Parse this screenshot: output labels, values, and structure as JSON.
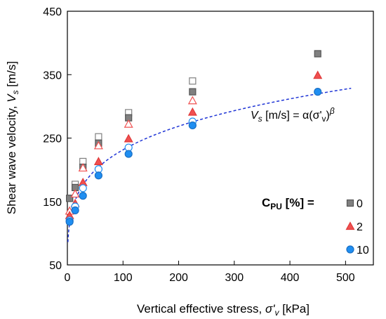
{
  "chart_data": {
    "type": "scatter",
    "xlabel": {
      "main": "Vertical effective stress, ",
      "sym": "σ'",
      "sub": "v",
      "tail": " [kPa]"
    },
    "ylabel": {
      "main": "Shear wave velocity, ",
      "sym": "V",
      "sub": "s",
      "tail": " [m/s]"
    },
    "xlim": [
      0,
      550
    ],
    "ylim": [
      50,
      450
    ],
    "xticks": [
      0,
      100,
      200,
      300,
      400,
      500
    ],
    "yticks": [
      50,
      150,
      250,
      350,
      450
    ],
    "grid": false,
    "legend": {
      "title_main": "C",
      "title_sub": "PU",
      "title_tail": " [%] =",
      "placement": "right",
      "entries": [
        "0",
        "2",
        "10"
      ]
    },
    "annotation": {
      "v": "V",
      "s": "s",
      "rest": " [m/s] = α(σ'",
      "v2": "v",
      "close": ")",
      "beta": "β"
    },
    "fit": {
      "type": "power",
      "alpha": 86,
      "beta": 0.215,
      "x_range": [
        1,
        510
      ],
      "color": "#1f35d6",
      "style": "dashed"
    },
    "series": [
      {
        "name": "0",
        "marker": "square",
        "color": "#808080",
        "filled": [
          [
            4,
            155
          ],
          [
            14,
            172
          ],
          [
            28,
            204
          ],
          [
            56,
            242
          ],
          [
            110,
            282
          ],
          [
            225,
            323
          ],
          [
            450,
            383
          ]
        ],
        "open": [
          [
            4,
            155
          ],
          [
            14,
            177
          ],
          [
            28,
            213
          ],
          [
            56,
            252
          ],
          [
            110,
            290
          ],
          [
            225,
            340
          ]
        ]
      },
      {
        "name": "2",
        "marker": "triangle",
        "color": "#f05050",
        "filled": [
          [
            4,
            128
          ],
          [
            14,
            147
          ],
          [
            28,
            180
          ],
          [
            56,
            213
          ],
          [
            110,
            249
          ],
          [
            225,
            291
          ],
          [
            450,
            349
          ]
        ],
        "open": [
          [
            4,
            135
          ],
          [
            14,
            162
          ],
          [
            28,
            203
          ],
          [
            56,
            238
          ],
          [
            110,
            272
          ],
          [
            225,
            309
          ]
        ]
      },
      {
        "name": "10",
        "marker": "circle",
        "color": "#1f8ef1",
        "filled": [
          [
            4,
            118
          ],
          [
            14,
            136
          ],
          [
            28,
            159
          ],
          [
            56,
            191
          ],
          [
            110,
            225
          ],
          [
            225,
            270
          ],
          [
            450,
            323
          ]
        ],
        "open": [
          [
            4,
            120
          ],
          [
            14,
            142
          ],
          [
            28,
            171
          ],
          [
            56,
            201
          ],
          [
            110,
            235
          ],
          [
            225,
            276
          ]
        ]
      }
    ]
  }
}
